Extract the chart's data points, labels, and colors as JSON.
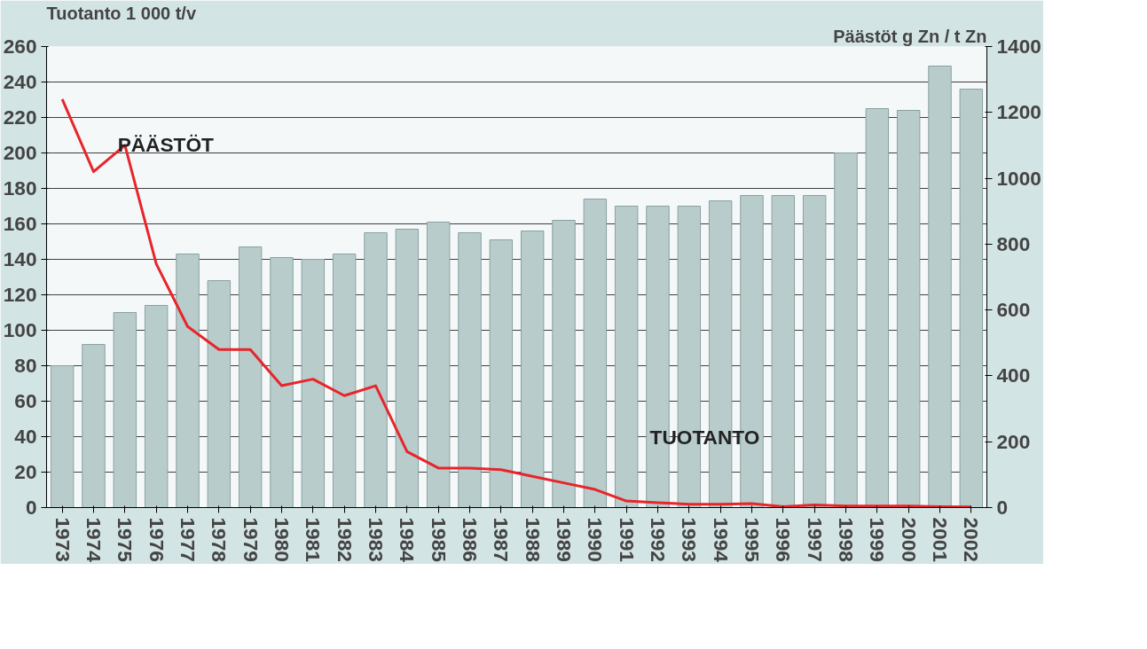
{
  "chart_data": {
    "type": "bar",
    "ylabel": "Tuotanto 1 000 t/v",
    "y2label": "Päästöt g Zn / t Zn",
    "categories": [
      "1973",
      "1974",
      "1975",
      "1976",
      "1977",
      "1978",
      "1979",
      "1980",
      "1981",
      "1982",
      "1983",
      "1984",
      "1985",
      "1986",
      "1987",
      "1988",
      "1989",
      "1990",
      "1991",
      "1992",
      "1993",
      "1994",
      "1995",
      "1996",
      "1997",
      "1998",
      "1999",
      "2000",
      "2001",
      "2002"
    ],
    "series": [
      {
        "name": "TUOTANTO",
        "color": "#b8cccc",
        "values": [
          80,
          92,
          110,
          114,
          143,
          128,
          147,
          141,
          140,
          143,
          155,
          157,
          161,
          155,
          151,
          156,
          162,
          174,
          170,
          170,
          170,
          173,
          176,
          176,
          176,
          200,
          225,
          224,
          249,
          236
        ]
      },
      {
        "name": "PÄÄSTÖT",
        "type": "line",
        "axis": "y2",
        "color": "#e8252a",
        "values": [
          1240,
          1020,
          1100,
          740,
          550,
          480,
          480,
          370,
          390,
          340,
          370,
          170,
          120,
          120,
          115,
          95,
          75,
          55,
          20,
          15,
          10,
          10,
          12,
          3,
          8,
          5,
          5,
          5,
          3,
          2
        ]
      }
    ],
    "ylim": [
      0,
      260
    ],
    "yticks": [
      0,
      20,
      40,
      60,
      80,
      100,
      120,
      140,
      160,
      180,
      200,
      220,
      240,
      260
    ],
    "y2lim": [
      0,
      1400
    ],
    "y2ticks": [
      0,
      200,
      400,
      600,
      800,
      1000,
      1200,
      1400
    ],
    "grid": "y",
    "legend": false
  }
}
